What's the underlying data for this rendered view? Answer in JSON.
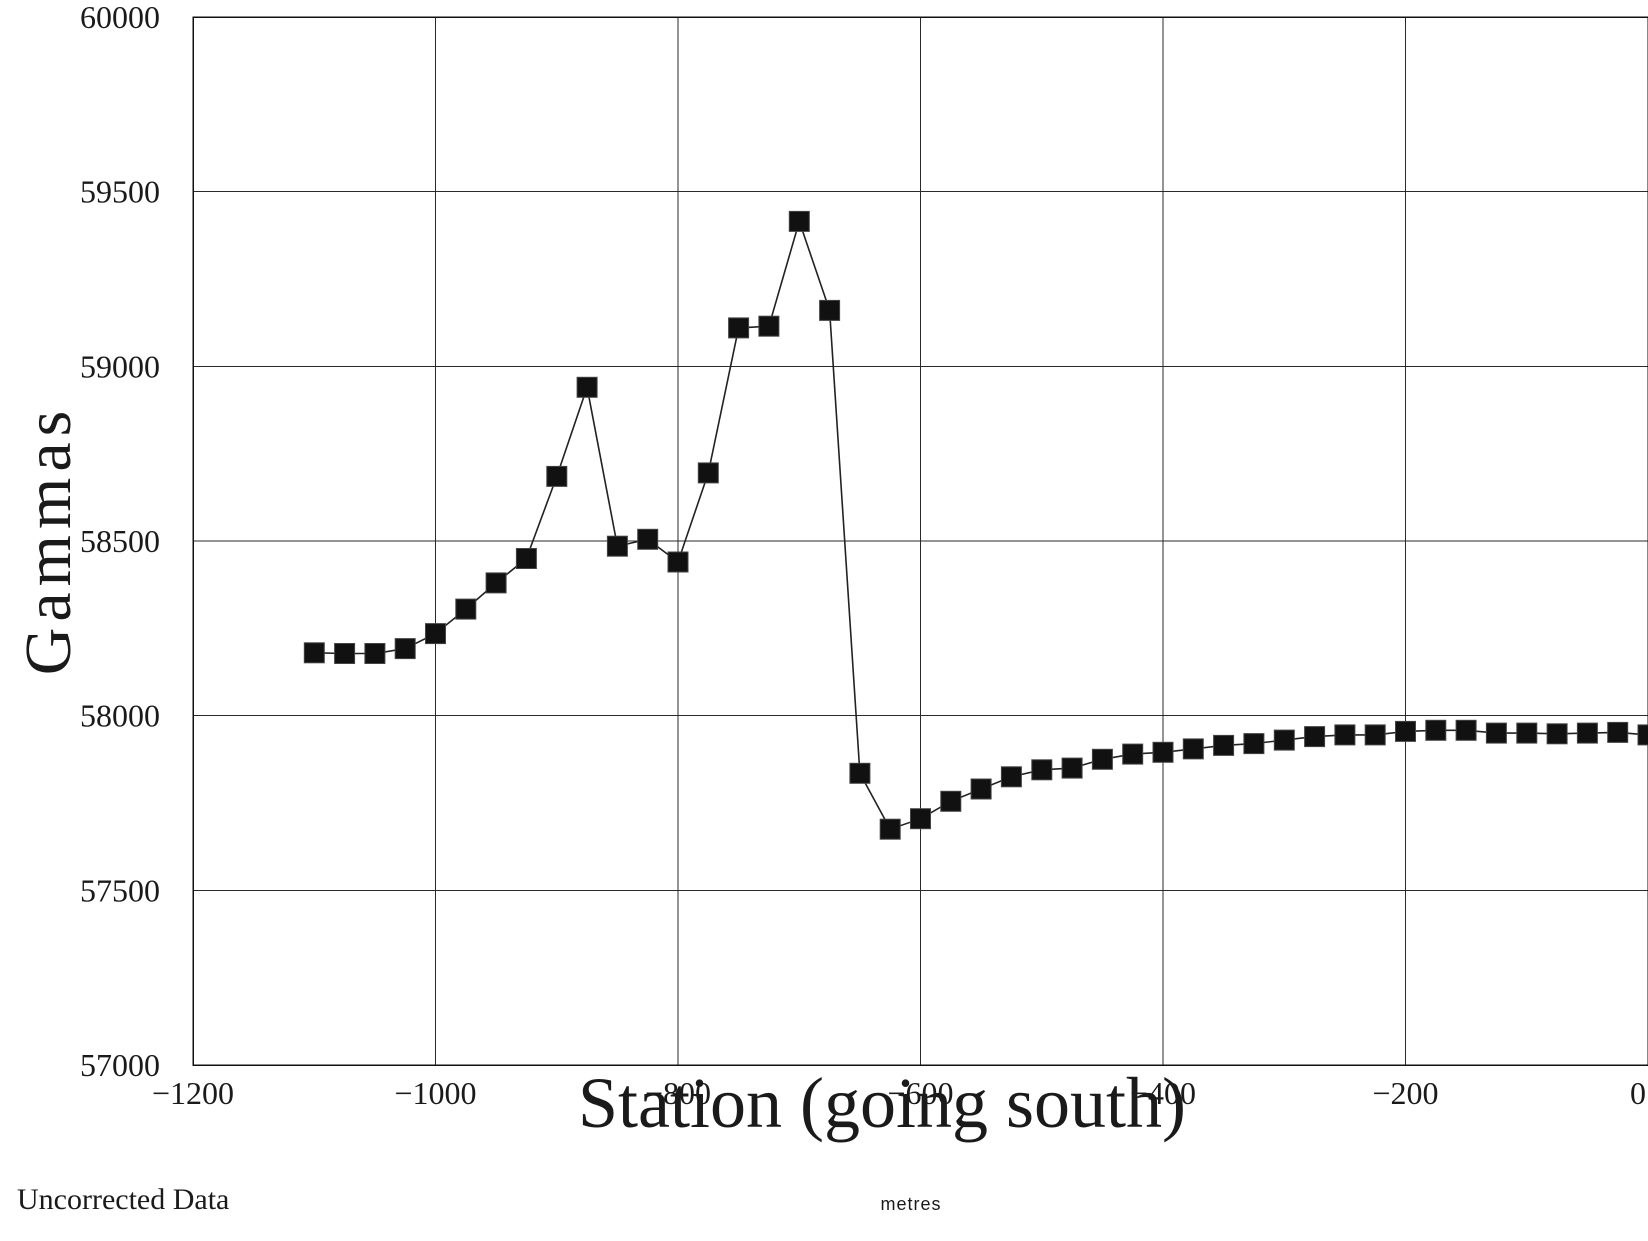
{
  "chart_data": {
    "type": "scatter",
    "title": "",
    "xlabel": "Station (going south)",
    "ylabel": "Gammas",
    "xlabel_unit": "metres",
    "note": "Uncorrected Data",
    "xlim": [
      -1200,
      0
    ],
    "ylim": [
      57000,
      60000
    ],
    "x_ticks": [
      -1200,
      -1000,
      -800,
      -600,
      -400,
      -200,
      0
    ],
    "x_tick_labels": [
      "−1200",
      "−1000",
      "−800",
      "−600",
      "−400",
      "−200",
      "0"
    ],
    "y_ticks": [
      57000,
      57500,
      58000,
      58500,
      59000,
      59500,
      60000
    ],
    "y_tick_labels": [
      "57000",
      "57500",
      "58000",
      "58500",
      "59000",
      "59500",
      "60000"
    ],
    "grid": true,
    "legend": "none",
    "marker": "square",
    "connected": true,
    "series": [
      {
        "x": [
          -1100,
          -1075,
          -1050,
          -1025,
          -1000,
          -975,
          -950,
          -925,
          -900,
          -875,
          -850,
          -825,
          -800,
          -775,
          -750,
          -725,
          -700,
          -675,
          -650,
          -625,
          -600,
          -575,
          -550,
          -525,
          -500,
          -475,
          -450,
          -425,
          -400,
          -375,
          -350,
          -325,
          -300,
          -275,
          -250,
          -225,
          -200,
          -175,
          -150,
          -125,
          -100,
          -75,
          -50,
          -25,
          0
        ],
        "values": [
          58180,
          58178,
          58178,
          58192,
          58235,
          58305,
          58380,
          58450,
          58685,
          58940,
          58485,
          58505,
          58440,
          58695,
          59110,
          59115,
          59415,
          59160,
          57835,
          57675,
          57705,
          57755,
          57790,
          57825,
          57845,
          57850,
          57875,
          57890,
          57895,
          57905,
          57915,
          57920,
          57930,
          57940,
          57945,
          57945,
          57955,
          57958,
          57958,
          57950,
          57950,
          57948,
          57950,
          57952,
          57945
        ]
      }
    ]
  }
}
